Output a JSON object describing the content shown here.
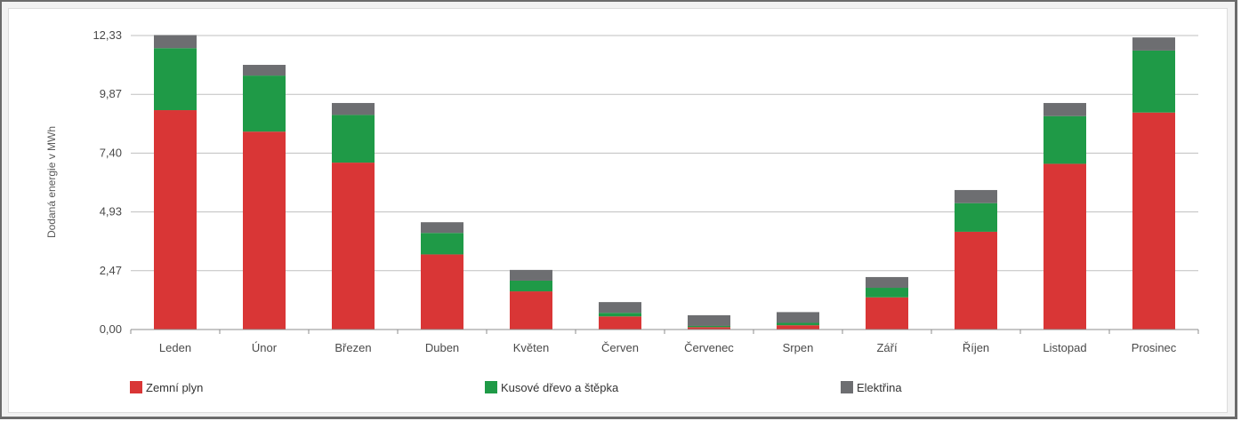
{
  "chart_data": {
    "type": "bar",
    "stacked": true,
    "ylabel": "Dodaná energie v MWh",
    "yticks": [
      "0,00",
      "2,47",
      "4,93",
      "7,40",
      "9,87",
      "12,33"
    ],
    "ylim": [
      0,
      12.33
    ],
    "grid": true,
    "legend_position": "bottom",
    "categories": [
      "Leden",
      "Únor",
      "Březen",
      "Duben",
      "Květen",
      "Červen",
      "Červenec",
      "Srpen",
      "Září",
      "Říjen",
      "Listopad",
      "Prosinec"
    ],
    "series": [
      {
        "name": "Zemní plyn",
        "color": "#d93636",
        "values": [
          9.2,
          8.3,
          7.0,
          3.15,
          1.6,
          0.55,
          0.1,
          0.18,
          1.35,
          4.1,
          6.95,
          9.1
        ]
      },
      {
        "name": "Kusové dřevo a štěpka",
        "color": "#1f9a47",
        "values": [
          2.6,
          2.35,
          2.0,
          0.9,
          0.45,
          0.15,
          0.05,
          0.1,
          0.4,
          1.2,
          2.0,
          2.6
        ]
      },
      {
        "name": "Elektřina",
        "color": "#6d6e71",
        "values": [
          0.55,
          0.45,
          0.5,
          0.45,
          0.45,
          0.45,
          0.45,
          0.45,
          0.45,
          0.55,
          0.55,
          0.55
        ]
      }
    ]
  }
}
